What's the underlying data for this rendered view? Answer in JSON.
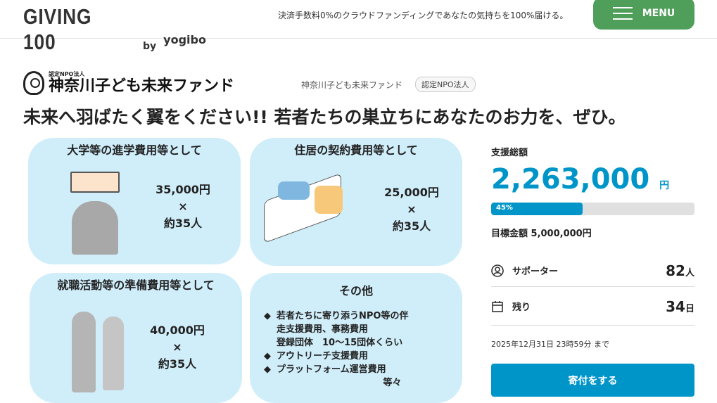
{
  "header": {
    "logo": "GIVING 100",
    "logo_by": "by",
    "partner_logo": "yogibo",
    "tagline": "決済手数料0%のクラウドファンディングであなたの気持ちを100%届ける。",
    "menu_label": "MENU"
  },
  "org": {
    "logo_small": "認定NPO法人",
    "logo_name": "神奈川子ども未来ファンド",
    "name": "神奈川子ども未来ファンド",
    "badge": "認定NPO法人"
  },
  "project_title": "未来へ羽ばたく翼をください!! 若者たちの巣立ちにあなたのお力を、ぜひ。",
  "infographic": {
    "cards": [
      {
        "heading": "大学等の進学費用等として",
        "amount": "35,000円",
        "times": "×",
        "people": "約35人"
      },
      {
        "heading": "住居の契約費用等として",
        "amount": "25,000円",
        "times": "×",
        "people": "約35人"
      },
      {
        "heading": "就職活動等の準備費用等として",
        "amount": "40,000円",
        "times": "×",
        "people": "約35人"
      },
      {
        "heading": "その他",
        "lines": [
          "若者たちに寄り添うNPO等の伴",
          "走支援費用、事務費用",
          "登録団体　10～15団体くらい",
          "アウトリーチ支援費用",
          "プラットフォーム運営費用",
          "等々"
        ]
      }
    ]
  },
  "stats": {
    "total_label": "支援総額",
    "total_amount": "2,263,000",
    "currency": "円",
    "progress_percent": 45,
    "progress_label": "45%",
    "goal": "目標金額 5,000,000円",
    "supporters_label": "サポーター",
    "supporters_value": "82",
    "supporters_unit": "人",
    "remaining_label": "残り",
    "remaining_value": "34",
    "remaining_unit": "日",
    "deadline": "2025年12月31日 23時59分 まで",
    "donate_label": "寄付をする"
  },
  "colors": {
    "accent": "#0095c8",
    "menu": "#4f9e5a",
    "card_bg": "#d0eefa"
  }
}
